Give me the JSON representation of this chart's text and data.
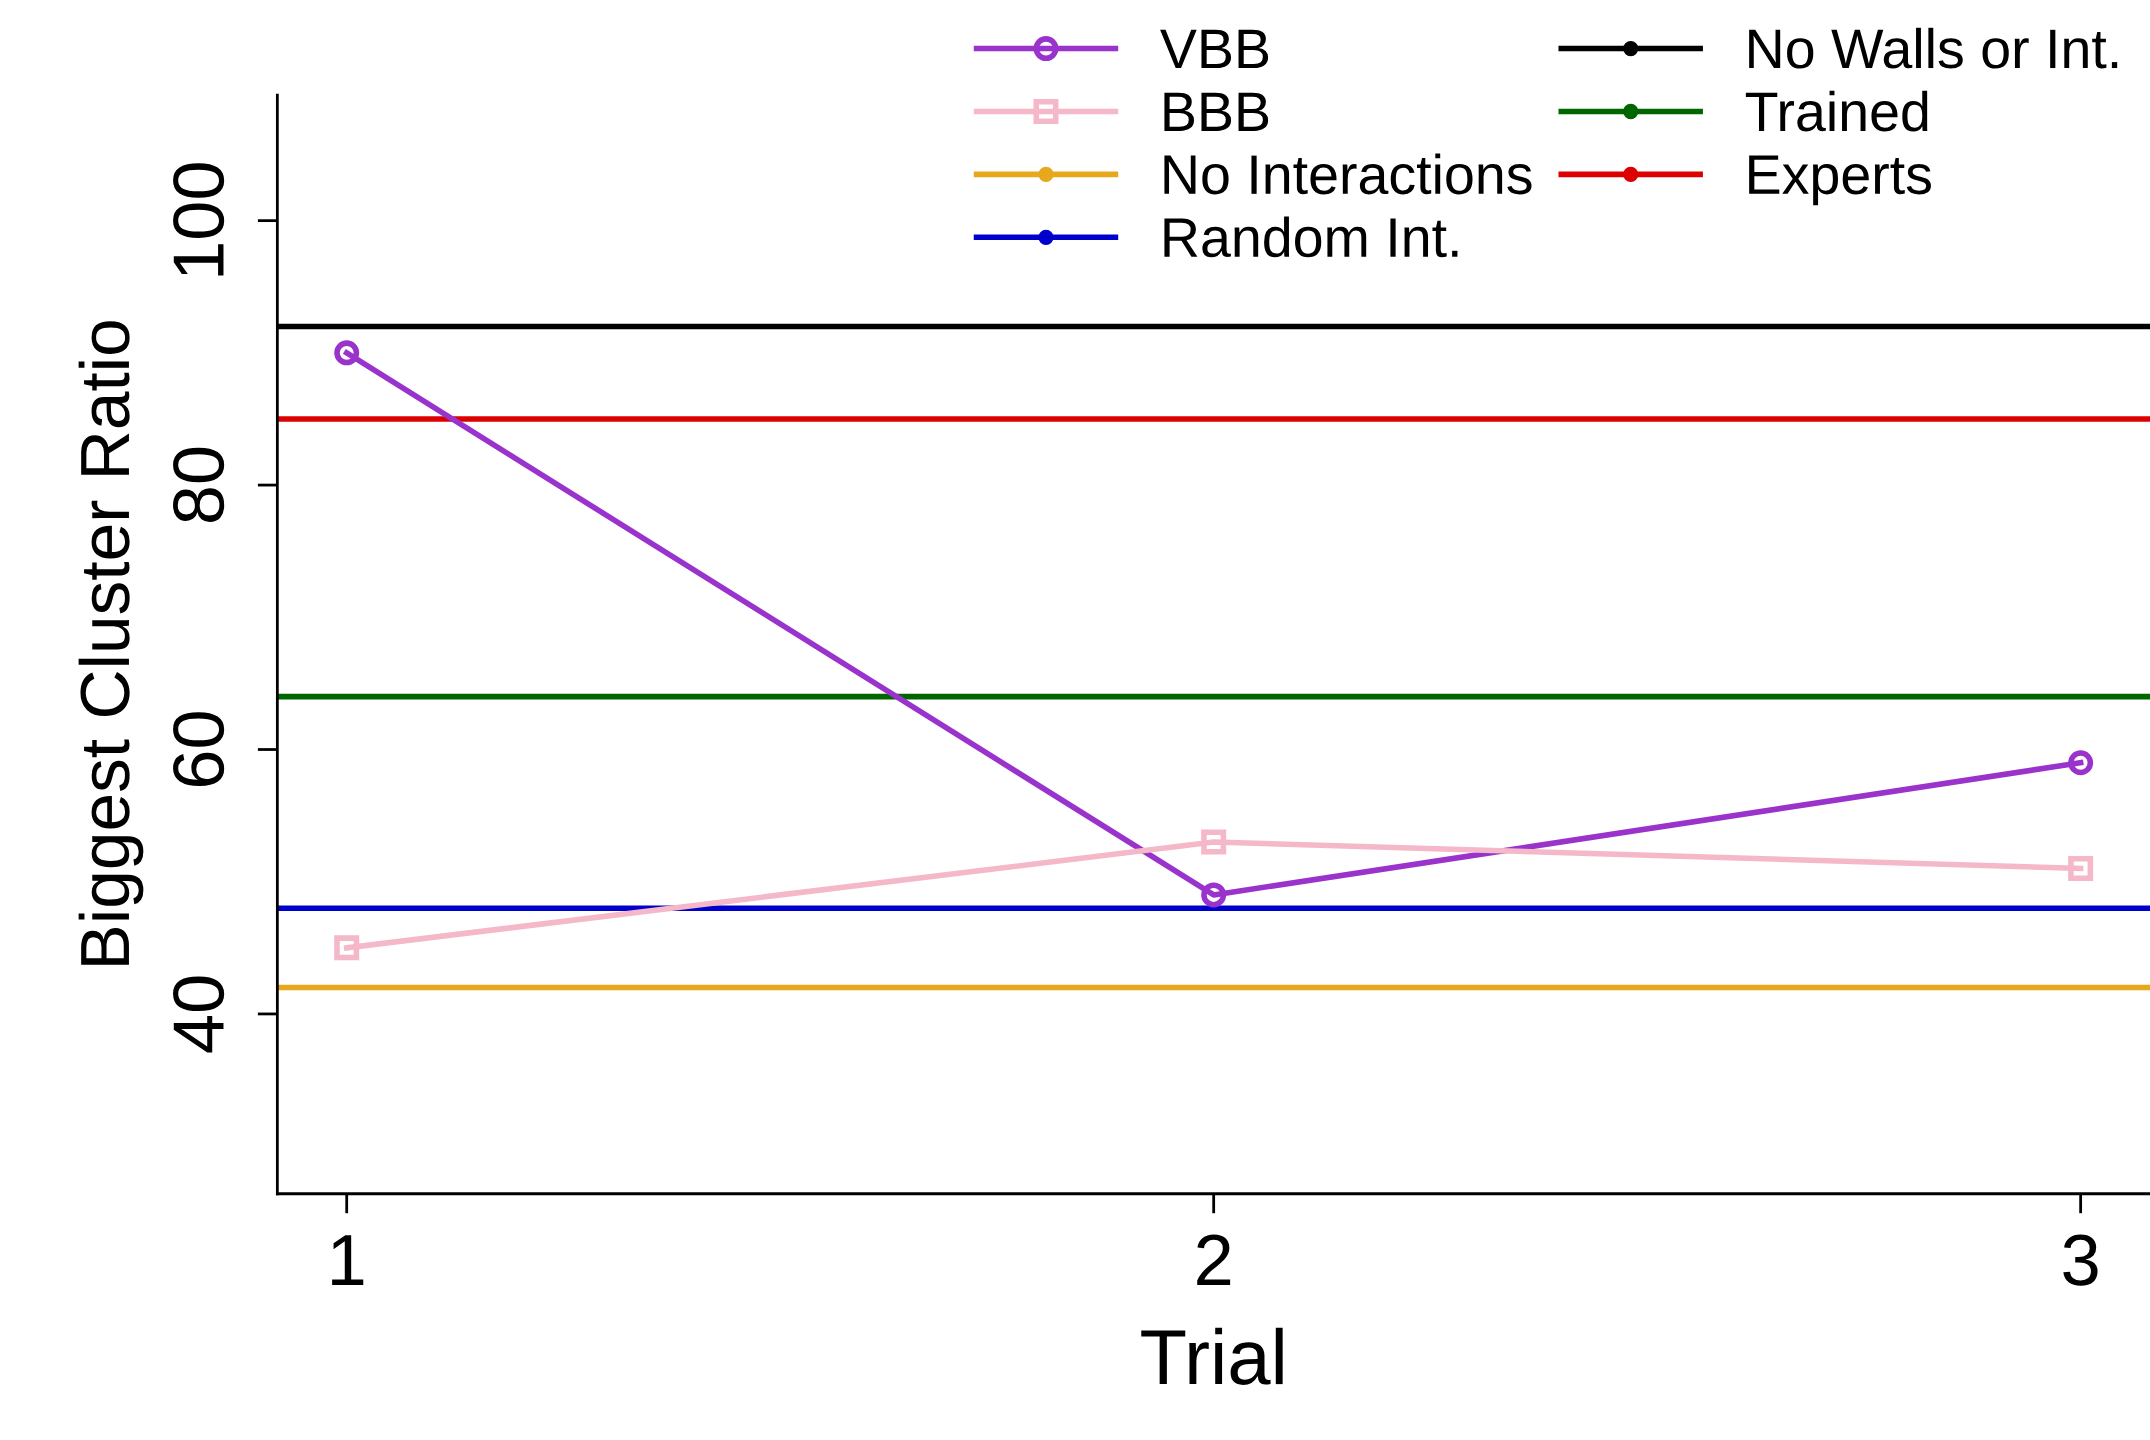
{
  "chart_data": {
    "type": "line",
    "xlabel": "Trial",
    "ylabel": "Biggest Cluster Ratio",
    "x": [
      1,
      2,
      3
    ],
    "series": [
      {
        "name": "VBB",
        "color": "#9933cc",
        "values": [
          90,
          49,
          59
        ],
        "marker": "circle"
      },
      {
        "name": "BBB",
        "color": "#f4b8c8",
        "values": [
          45,
          53,
          51
        ],
        "marker": "square"
      }
    ],
    "ref_lines": [
      {
        "axis": "y",
        "value": 42,
        "label": "No Interactions",
        "color": "#e8a81c"
      },
      {
        "axis": "y",
        "value": 48,
        "label": "Random Int.",
        "color": "#0000cc"
      },
      {
        "axis": "y",
        "value": 92,
        "label": "No Walls or Int.",
        "color": "#000000"
      },
      {
        "axis": "y",
        "value": 64,
        "label": "Trained",
        "color": "#006600"
      },
      {
        "axis": "y",
        "value": 85,
        "label": "Experts",
        "color": "#dd0000"
      }
    ],
    "xlim": [
      0.92,
      3.08
    ],
    "ylim": [
      26.4,
      109.5
    ],
    "xticks": [
      1,
      2,
      3
    ],
    "yticks": [
      40,
      60,
      80,
      100
    ],
    "grid": false,
    "legend": "top",
    "line_style": "solid"
  }
}
